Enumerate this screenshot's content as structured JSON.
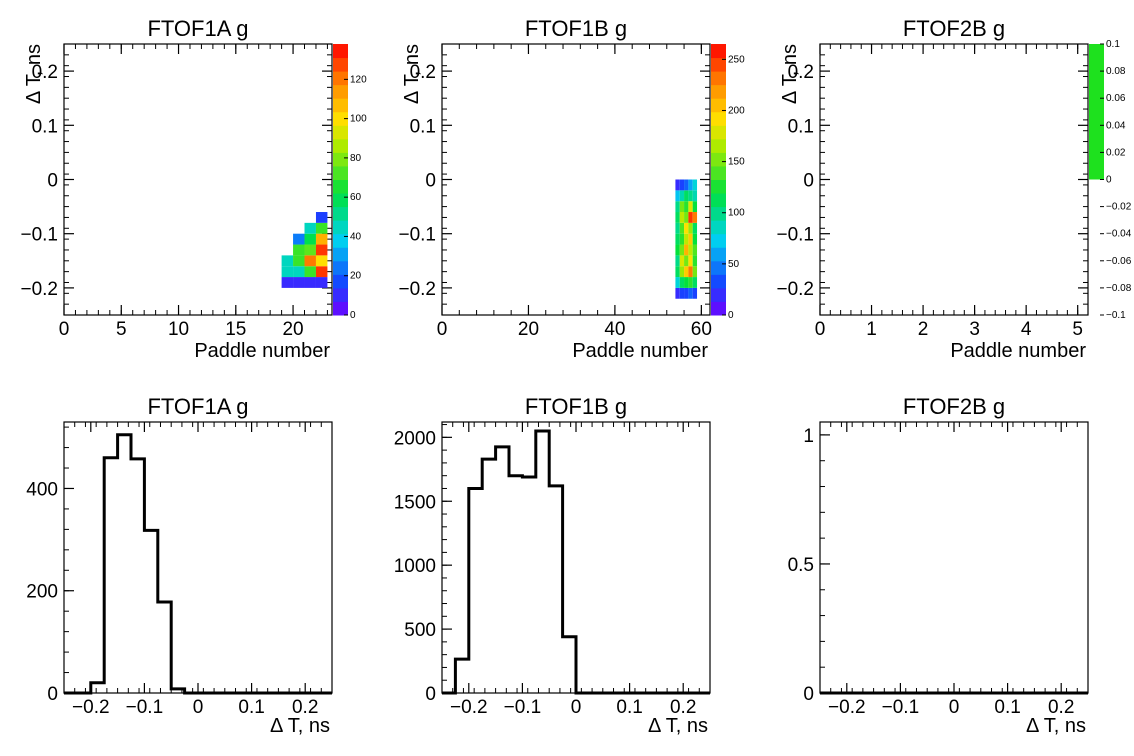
{
  "chart_data": [
    {
      "type": "heatmap",
      "title": "FTOF1A g",
      "xlabel": "Paddle number",
      "ylabel": "Δ T, ns",
      "xlim": [
        0,
        23.4
      ],
      "ylim": [
        -0.25,
        0.25
      ],
      "x_ticks": [
        0,
        5,
        10,
        15,
        20
      ],
      "x_tick_labels": [
        "0",
        "5",
        "10",
        "15",
        "20"
      ],
      "y_ticks": [
        -0.2,
        -0.1,
        0,
        0.1,
        0.2
      ],
      "y_tick_labels": [
        "−0.2",
        "−0.1",
        "0",
        "0.1",
        "0.2"
      ],
      "bin_width_x": 1,
      "bin_width_y": 0.02,
      "cells": [
        {
          "x": 19,
          "y": -0.2,
          "v": 10
        },
        {
          "x": 20,
          "y": -0.2,
          "v": 10
        },
        {
          "x": 21,
          "y": -0.2,
          "v": 10
        },
        {
          "x": 22,
          "y": -0.2,
          "v": 10
        },
        {
          "x": 19,
          "y": -0.18,
          "v": 45
        },
        {
          "x": 20,
          "y": -0.18,
          "v": 45
        },
        {
          "x": 21,
          "y": -0.18,
          "v": 70
        },
        {
          "x": 22,
          "y": -0.18,
          "v": 130
        },
        {
          "x": 19,
          "y": -0.16,
          "v": 45
        },
        {
          "x": 20,
          "y": -0.16,
          "v": 70
        },
        {
          "x": 21,
          "y": -0.16,
          "v": 120
        },
        {
          "x": 22,
          "y": -0.16,
          "v": 100
        },
        {
          "x": 20,
          "y": -0.14,
          "v": 70
        },
        {
          "x": 21,
          "y": -0.14,
          "v": 75
        },
        {
          "x": 22,
          "y": -0.14,
          "v": 130
        },
        {
          "x": 20,
          "y": -0.12,
          "v": 25
        },
        {
          "x": 21,
          "y": -0.12,
          "v": 60
        },
        {
          "x": 22,
          "y": -0.12,
          "v": 110
        },
        {
          "x": 21,
          "y": -0.1,
          "v": 45
        },
        {
          "x": 22,
          "y": -0.1,
          "v": 70
        },
        {
          "x": 22,
          "y": -0.08,
          "v": 15
        }
      ],
      "palette": {
        "max": 138,
        "ticks": [
          0,
          20,
          40,
          60,
          80,
          100,
          120
        ],
        "tick_labels": [
          "0",
          "20",
          "40",
          "60",
          "80",
          "100",
          "120"
        ]
      }
    },
    {
      "type": "heatmap",
      "title": "FTOF1B g",
      "xlabel": "Paddle number",
      "ylabel": "Δ T, ns",
      "xlim": [
        0,
        62
      ],
      "ylim": [
        -0.25,
        0.25
      ],
      "x_ticks": [
        0,
        20,
        40,
        60
      ],
      "x_tick_labels": [
        "0",
        "20",
        "40",
        "60"
      ],
      "y_ticks": [
        -0.2,
        -0.1,
        0,
        0.1,
        0.2
      ],
      "y_tick_labels": [
        "−0.2",
        "−0.1",
        "0",
        "0.1",
        "0.2"
      ],
      "bin_width_x": 1,
      "bin_width_y": 0.02,
      "cells": [
        {
          "x": 54,
          "y": -0.22,
          "v": 20
        },
        {
          "x": 55,
          "y": -0.22,
          "v": 30
        },
        {
          "x": 56,
          "y": -0.22,
          "v": 30
        },
        {
          "x": 57,
          "y": -0.22,
          "v": 40
        },
        {
          "x": 58,
          "y": -0.22,
          "v": 30
        },
        {
          "x": 54,
          "y": -0.2,
          "v": 80
        },
        {
          "x": 55,
          "y": -0.2,
          "v": 110
        },
        {
          "x": 56,
          "y": -0.2,
          "v": 120
        },
        {
          "x": 57,
          "y": -0.2,
          "v": 130
        },
        {
          "x": 58,
          "y": -0.2,
          "v": 110
        },
        {
          "x": 54,
          "y": -0.18,
          "v": 110
        },
        {
          "x": 55,
          "y": -0.18,
          "v": 160
        },
        {
          "x": 56,
          "y": -0.18,
          "v": 200
        },
        {
          "x": 57,
          "y": -0.18,
          "v": 230
        },
        {
          "x": 58,
          "y": -0.18,
          "v": 150
        },
        {
          "x": 54,
          "y": -0.16,
          "v": 100
        },
        {
          "x": 55,
          "y": -0.16,
          "v": 180
        },
        {
          "x": 56,
          "y": -0.16,
          "v": 150
        },
        {
          "x": 57,
          "y": -0.16,
          "v": 190
        },
        {
          "x": 58,
          "y": -0.16,
          "v": 130
        },
        {
          "x": 54,
          "y": -0.14,
          "v": 120
        },
        {
          "x": 55,
          "y": -0.14,
          "v": 150
        },
        {
          "x": 56,
          "y": -0.14,
          "v": 210
        },
        {
          "x": 57,
          "y": -0.14,
          "v": 170
        },
        {
          "x": 58,
          "y": -0.14,
          "v": 140
        },
        {
          "x": 54,
          "y": -0.12,
          "v": 110
        },
        {
          "x": 55,
          "y": -0.12,
          "v": 130
        },
        {
          "x": 56,
          "y": -0.12,
          "v": 170
        },
        {
          "x": 57,
          "y": -0.12,
          "v": 200
        },
        {
          "x": 58,
          "y": -0.12,
          "v": 120
        },
        {
          "x": 54,
          "y": -0.1,
          "v": 100
        },
        {
          "x": 55,
          "y": -0.1,
          "v": 140
        },
        {
          "x": 56,
          "y": -0.1,
          "v": 190
        },
        {
          "x": 57,
          "y": -0.1,
          "v": 160
        },
        {
          "x": 58,
          "y": -0.1,
          "v": 110
        },
        {
          "x": 54,
          "y": -0.08,
          "v": 110
        },
        {
          "x": 55,
          "y": -0.08,
          "v": 170
        },
        {
          "x": 56,
          "y": -0.08,
          "v": 150
        },
        {
          "x": 57,
          "y": -0.08,
          "v": 250
        },
        {
          "x": 58,
          "y": -0.08,
          "v": 230
        },
        {
          "x": 54,
          "y": -0.06,
          "v": 100
        },
        {
          "x": 55,
          "y": -0.06,
          "v": 150
        },
        {
          "x": 56,
          "y": -0.06,
          "v": 130
        },
        {
          "x": 57,
          "y": -0.06,
          "v": 180
        },
        {
          "x": 58,
          "y": -0.06,
          "v": 120
        },
        {
          "x": 54,
          "y": -0.04,
          "v": 70
        },
        {
          "x": 55,
          "y": -0.04,
          "v": 90
        },
        {
          "x": 56,
          "y": -0.04,
          "v": 110
        },
        {
          "x": 57,
          "y": -0.04,
          "v": 100
        },
        {
          "x": 58,
          "y": -0.04,
          "v": 90
        },
        {
          "x": 54,
          "y": -0.02,
          "v": 20
        },
        {
          "x": 55,
          "y": -0.02,
          "v": 30
        },
        {
          "x": 56,
          "y": -0.02,
          "v": 40
        },
        {
          "x": 57,
          "y": -0.02,
          "v": 60
        },
        {
          "x": 58,
          "y": -0.02,
          "v": 80
        }
      ],
      "palette": {
        "max": 265,
        "ticks": [
          0,
          50,
          100,
          150,
          200,
          250
        ],
        "tick_labels": [
          "0",
          "50",
          "100",
          "150",
          "200",
          "250"
        ]
      }
    },
    {
      "type": "heatmap",
      "title": "FTOF2B g",
      "xlabel": "Paddle number",
      "ylabel": "Δ T, ns",
      "xlim": [
        0,
        5.2
      ],
      "ylim": [
        -0.25,
        0.25
      ],
      "x_ticks": [
        0,
        1,
        2,
        3,
        4,
        5
      ],
      "x_tick_labels": [
        "0",
        "1",
        "2",
        "3",
        "4",
        "5"
      ],
      "y_ticks": [
        -0.2,
        -0.1,
        0,
        0.1,
        0.2
      ],
      "y_tick_labels": [
        "−0.2",
        "−0.1",
        "0",
        "0.1",
        "0.2"
      ],
      "cells": [],
      "palette": {
        "range": [
          -0.1,
          0.1
        ],
        "fill_from": 0,
        "fill_color": "#1ee11e",
        "ticks": [
          -0.1,
          -0.08,
          -0.06,
          -0.04,
          -0.02,
          0,
          0.02,
          0.04,
          0.06,
          0.08,
          0.1
        ],
        "tick_labels": [
          "−0.1",
          "−0.08",
          "−0.06",
          "−0.04",
          "−0.02",
          "0",
          "0.02",
          "0.04",
          "0.06",
          "0.08",
          "0.1"
        ]
      }
    },
    {
      "type": "bar",
      "style": "step",
      "title": "FTOF1A g",
      "xlabel": "Δ T, ns",
      "xlim": [
        -0.25,
        0.25
      ],
      "ylim": [
        0,
        530
      ],
      "x_ticks": [
        -0.2,
        -0.1,
        0,
        0.1,
        0.2
      ],
      "x_tick_labels": [
        "−0.2",
        "−0.1",
        "0",
        "0.1",
        "0.2"
      ],
      "y_ticks": [
        0,
        200,
        400
      ],
      "y_tick_labels": [
        "0",
        "200",
        "400"
      ],
      "bin_edges": [
        -0.25,
        -0.225,
        -0.2,
        -0.175,
        -0.15,
        -0.125,
        -0.1,
        -0.075,
        -0.05,
        -0.025,
        0,
        0.025,
        0.05,
        0.075,
        0.1,
        0.125,
        0.15,
        0.175,
        0.2,
        0.225,
        0.25
      ],
      "values": [
        0,
        0,
        20,
        460,
        505,
        458,
        318,
        178,
        8,
        0,
        0,
        0,
        0,
        0,
        0,
        0,
        0,
        0,
        0,
        0
      ]
    },
    {
      "type": "bar",
      "style": "step",
      "title": "FTOF1B g",
      "xlabel": "Δ T, ns",
      "xlim": [
        -0.25,
        0.25
      ],
      "ylim": [
        0,
        2120
      ],
      "x_ticks": [
        -0.2,
        -0.1,
        0,
        0.1,
        0.2
      ],
      "x_tick_labels": [
        "−0.2",
        "−0.1",
        "0",
        "0.1",
        "0.2"
      ],
      "y_ticks": [
        0,
        500,
        1000,
        1500,
        2000
      ],
      "y_tick_labels": [
        "0",
        "500",
        "1000",
        "1500",
        "2000"
      ],
      "bin_edges": [
        -0.25,
        -0.225,
        -0.2,
        -0.175,
        -0.15,
        -0.125,
        -0.1,
        -0.075,
        -0.05,
        -0.025,
        0,
        0.025,
        0.05,
        0.075,
        0.1,
        0.125,
        0.15,
        0.175,
        0.2,
        0.225,
        0.25
      ],
      "values": [
        0,
        265,
        1600,
        1830,
        1925,
        1700,
        1690,
        2050,
        1620,
        440,
        0,
        0,
        0,
        0,
        0,
        0,
        0,
        0,
        0,
        0
      ]
    },
    {
      "type": "bar",
      "style": "step",
      "title": "FTOF2B g",
      "xlabel": "Δ T, ns",
      "xlim": [
        -0.25,
        0.25
      ],
      "ylim": [
        0,
        1.05
      ],
      "x_ticks": [
        -0.2,
        -0.1,
        0,
        0.1,
        0.2
      ],
      "x_tick_labels": [
        "−0.2",
        "−0.1",
        "0",
        "0.1",
        "0.2"
      ],
      "y_ticks": [
        0,
        0.5,
        1
      ],
      "y_tick_labels": [
        "0",
        "0.5",
        "1"
      ],
      "bin_edges": [
        -0.25,
        -0.225,
        -0.2,
        -0.175,
        -0.15,
        -0.125,
        -0.1,
        -0.075,
        -0.05,
        -0.025,
        0,
        0.025,
        0.05,
        0.075,
        0.1,
        0.125,
        0.15,
        0.175,
        0.2,
        0.225,
        0.25
      ],
      "values": [
        0,
        0,
        0,
        0,
        0,
        0,
        0,
        0,
        0,
        0,
        0,
        0,
        0,
        0,
        0,
        0,
        0,
        0,
        0,
        0
      ]
    }
  ]
}
